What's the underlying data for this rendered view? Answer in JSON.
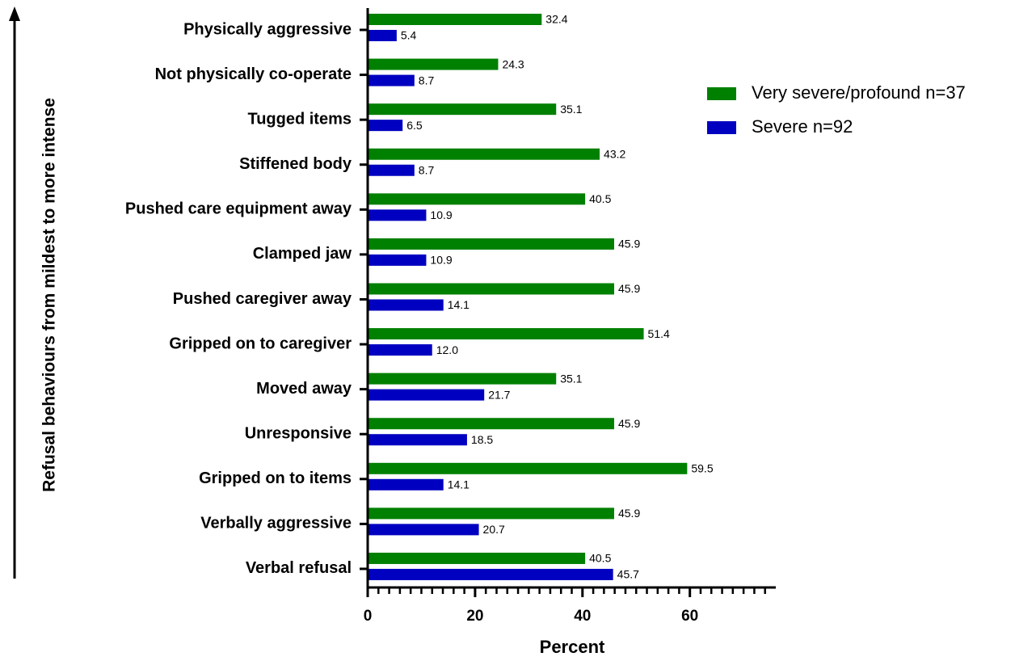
{
  "chart_data": {
    "type": "barh",
    "xlabel": "Percent",
    "ylabel": "Refusal behaviours from mildest to more intense",
    "categories": [
      "Physically aggressive",
      "Not physically co-operate",
      "Tugged items",
      "Stiffened body",
      "Pushed care equipment away",
      "Clamped jaw",
      "Pushed caregiver away",
      "Gripped on to caregiver",
      "Moved away",
      "Unresponsive",
      "Gripped on to items",
      "Verbally aggressive",
      "Verbal refusal"
    ],
    "series": [
      {
        "name": "Very severe/profound n=37",
        "color": "#008000",
        "values": [
          32.4,
          24.3,
          35.1,
          43.2,
          40.5,
          45.9,
          45.9,
          51.4,
          35.1,
          45.9,
          59.5,
          45.9,
          40.5
        ]
      },
      {
        "name": "Severe n=92",
        "color": "#0000c0",
        "values": [
          5.4,
          8.7,
          6.5,
          8.7,
          10.9,
          10.9,
          14.1,
          12.0,
          21.7,
          18.5,
          14.1,
          20.7,
          45.7
        ],
        "value_labels": [
          "5.4",
          "8.7",
          "6.5",
          "8.7",
          "10.9",
          "10.9",
          "14.1",
          "12.0",
          "21.7",
          "18.5",
          "14.1",
          "20.7",
          "45.7"
        ]
      }
    ],
    "xlim": [
      0,
      76
    ],
    "xticks": [
      0,
      20,
      40,
      60
    ],
    "xminorticks": [
      2,
      4,
      6,
      8,
      10,
      12,
      14,
      16,
      18,
      22,
      24,
      26,
      28,
      30,
      32,
      34,
      36,
      38,
      42,
      44,
      46,
      48,
      50,
      52,
      54,
      56,
      58,
      62,
      64,
      66,
      68,
      70,
      72,
      74
    ],
    "legend": "right"
  }
}
